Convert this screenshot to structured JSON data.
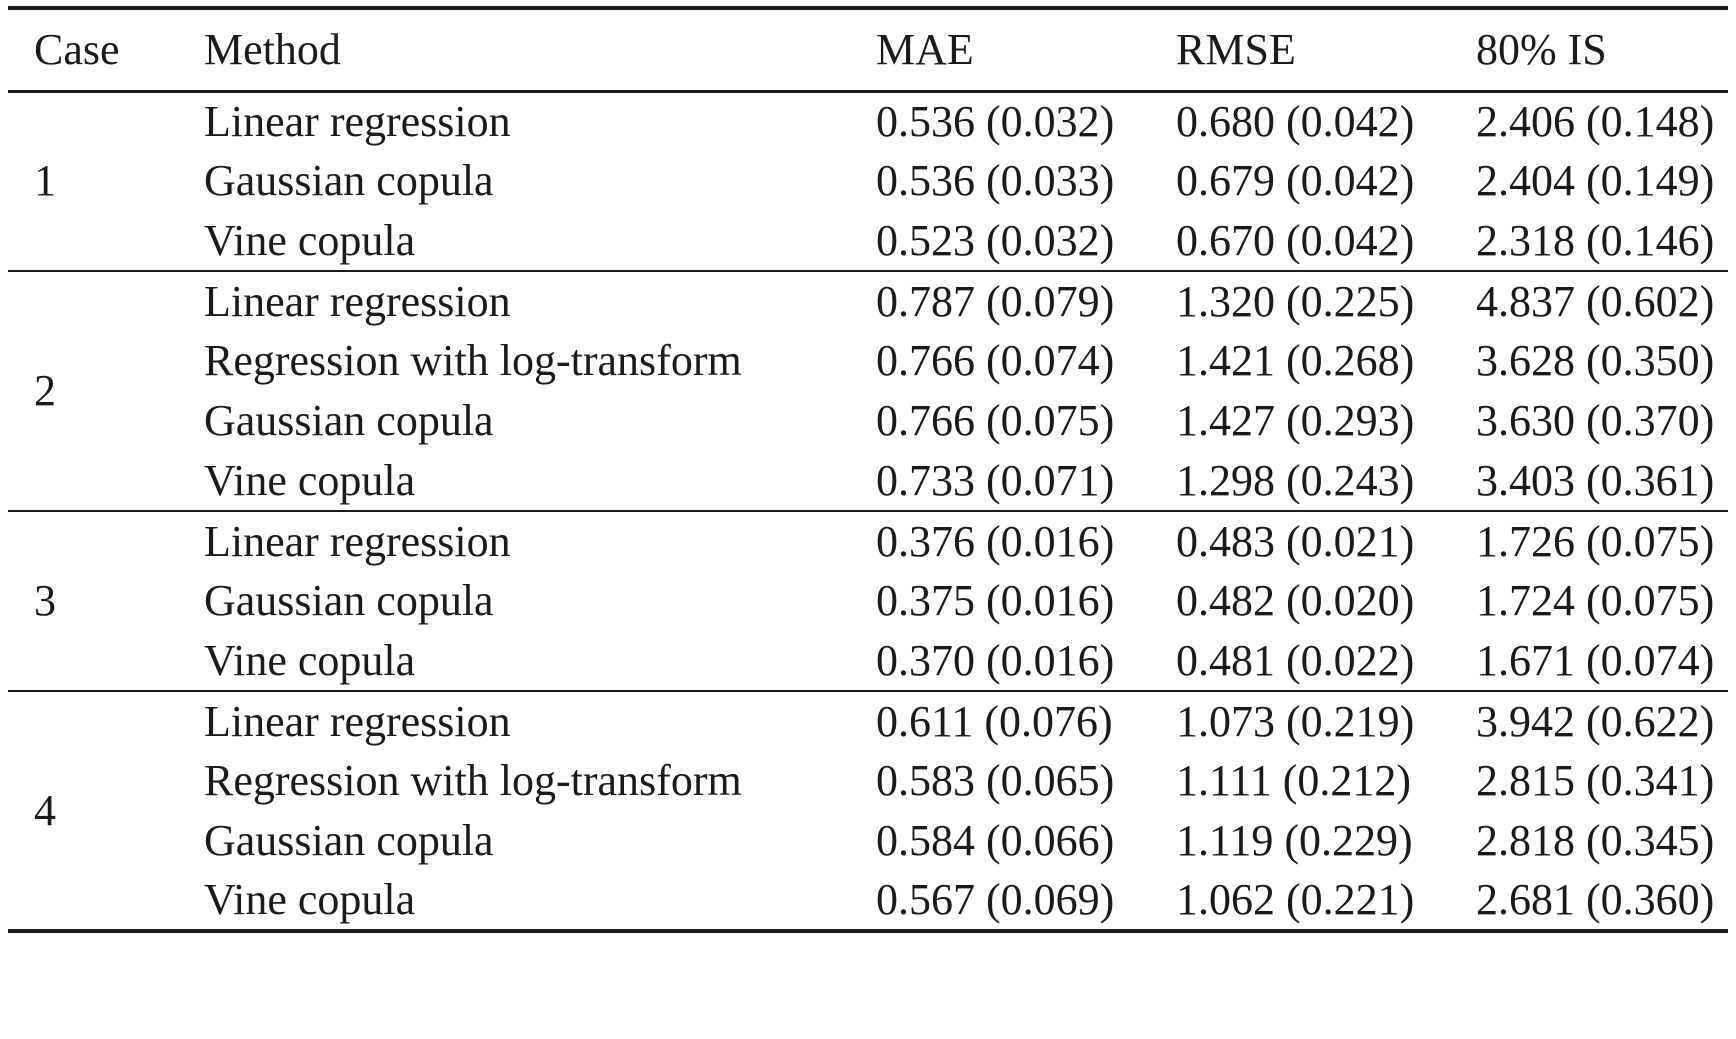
{
  "table": {
    "headers": {
      "case": "Case",
      "method": "Method",
      "mae": "MAE",
      "rmse": "RMSE",
      "is80": "80% IS"
    },
    "groups": [
      {
        "case": "1",
        "rows": [
          {
            "method": "Linear regression",
            "mae": "0.536 (0.032)",
            "rmse": "0.680 (0.042)",
            "is80": "2.406 (0.148)"
          },
          {
            "method": "Gaussian copula",
            "mae": "0.536 (0.033)",
            "rmse": "0.679 (0.042)",
            "is80": "2.404 (0.149)"
          },
          {
            "method": "Vine copula",
            "mae": "0.523 (0.032)",
            "rmse": "0.670 (0.042)",
            "is80": "2.318 (0.146)"
          }
        ]
      },
      {
        "case": "2",
        "rows": [
          {
            "method": "Linear regression",
            "mae": "0.787 (0.079)",
            "rmse": "1.320 (0.225)",
            "is80": "4.837 (0.602)"
          },
          {
            "method": "Regression with log-transform",
            "mae": "0.766 (0.074)",
            "rmse": "1.421 (0.268)",
            "is80": "3.628 (0.350)"
          },
          {
            "method": "Gaussian copula",
            "mae": "0.766 (0.075)",
            "rmse": "1.427 (0.293)",
            "is80": "3.630 (0.370)"
          },
          {
            "method": "Vine copula",
            "mae": "0.733 (0.071)",
            "rmse": "1.298 (0.243)",
            "is80": "3.403 (0.361)"
          }
        ]
      },
      {
        "case": "3",
        "rows": [
          {
            "method": "Linear regression",
            "mae": "0.376 (0.016)",
            "rmse": "0.483 (0.021)",
            "is80": "1.726 (0.075)"
          },
          {
            "method": "Gaussian copula",
            "mae": "0.375 (0.016)",
            "rmse": "0.482 (0.020)",
            "is80": "1.724 (0.075)"
          },
          {
            "method": "Vine copula",
            "mae": "0.370 (0.016)",
            "rmse": "0.481 (0.022)",
            "is80": "1.671 (0.074)"
          }
        ]
      },
      {
        "case": "4",
        "rows": [
          {
            "method": "Linear regression",
            "mae": "0.611 (0.076)",
            "rmse": "1.073 (0.219)",
            "is80": "3.942 (0.622)"
          },
          {
            "method": "Regression with log-transform",
            "mae": "0.583 (0.065)",
            "rmse": "1.111 (0.212)",
            "is80": "2.815 (0.341)"
          },
          {
            "method": "Gaussian copula",
            "mae": "0.584 (0.066)",
            "rmse": "1.119 (0.229)",
            "is80": "2.818 (0.345)"
          },
          {
            "method": "Vine copula",
            "mae": "0.567 (0.069)",
            "rmse": "1.062 (0.221)",
            "is80": "2.681 (0.360)"
          }
        ]
      }
    ]
  }
}
